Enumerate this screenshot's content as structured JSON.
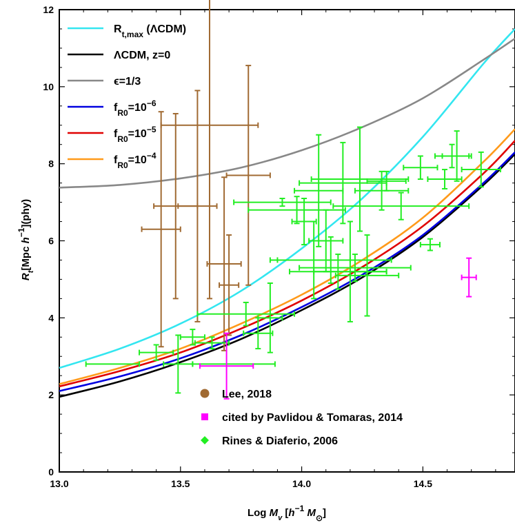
{
  "chart_data": {
    "type": "line",
    "xlabel_parts": [
      "Log ",
      "M",
      "v",
      " [",
      "h",
      "−1",
      " ",
      "M",
      "⊙",
      "]"
    ],
    "ylabel_parts": [
      "R",
      "t",
      "[Mpc ",
      "h",
      "−1",
      "](phy)"
    ],
    "xlim": [
      13.0,
      14.88
    ],
    "ylim": [
      0,
      12
    ],
    "x_ticks": [
      "13.0",
      "13.5",
      "14.0",
      "14.5"
    ],
    "y_ticks": [
      "0",
      "2",
      "4",
      "6",
      "8",
      "10",
      "12"
    ],
    "legend_lines": [
      {
        "parts": [
          "R",
          "t,max",
          " (ΛCDM)"
        ],
        "color": "#33e6f0"
      },
      {
        "parts": [
          "ΛCDM, z=0"
        ],
        "color": "#000000"
      },
      {
        "parts": [
          "ϵ=1/3"
        ],
        "color": "#888888"
      },
      {
        "parts": [
          "f",
          "R0",
          "=10",
          "−6"
        ],
        "color": "#0000e0"
      },
      {
        "parts": [
          "f",
          "R0",
          "=10",
          "−5"
        ],
        "color": "#e00000"
      },
      {
        "parts": [
          "f",
          "R0",
          "=10",
          "−4"
        ],
        "color": "#ff9a1a"
      }
    ],
    "legend_points": [
      {
        "label": "Lee, 2018",
        "marker": "circle",
        "color": "#a06a32"
      },
      {
        "label": "cited by Pavlidou & Tomaras, 2014",
        "marker": "square",
        "color": "#ff00ff"
      },
      {
        "label": "Rines & Diaferio, 2006",
        "marker": "diamond",
        "color": "#22ee22"
      }
    ],
    "curves": [
      {
        "name": "rtmax",
        "color": "#33e6f0",
        "x": [
          13.0,
          13.25,
          13.5,
          13.75,
          14.0,
          14.25,
          14.5,
          14.75,
          14.88
        ],
        "y": [
          2.7,
          3.2,
          3.85,
          4.7,
          5.8,
          7.1,
          8.7,
          10.6,
          11.5
        ]
      },
      {
        "name": "lcdm",
        "color": "#000000",
        "x": [
          13.0,
          13.25,
          13.5,
          13.75,
          14.0,
          14.25,
          14.5,
          14.75,
          14.88
        ],
        "y": [
          1.95,
          2.35,
          2.85,
          3.45,
          4.2,
          5.05,
          6.1,
          7.45,
          8.25
        ]
      },
      {
        "name": "eps",
        "color": "#888888",
        "x": [
          13.0,
          13.25,
          13.5,
          13.75,
          14.0,
          14.25,
          14.5,
          14.75,
          14.88
        ],
        "y": [
          7.38,
          7.45,
          7.62,
          7.9,
          8.35,
          8.95,
          9.7,
          10.7,
          11.25
        ]
      },
      {
        "name": "fr6",
        "color": "#0000e0",
        "x": [
          13.0,
          13.25,
          13.5,
          13.75,
          14.0,
          14.25,
          14.5,
          14.75,
          14.88
        ],
        "y": [
          2.1,
          2.48,
          2.95,
          3.55,
          4.28,
          5.12,
          6.15,
          7.5,
          8.3
        ]
      },
      {
        "name": "fr5",
        "color": "#e00000",
        "x": [
          13.0,
          13.25,
          13.5,
          13.75,
          14.0,
          14.25,
          14.5,
          14.75,
          14.88
        ],
        "y": [
          2.22,
          2.62,
          3.1,
          3.72,
          4.45,
          5.32,
          6.38,
          7.75,
          8.6
        ]
      },
      {
        "name": "fr4",
        "color": "#ff9a1a",
        "x": [
          13.0,
          13.25,
          13.5,
          13.75,
          14.0,
          14.25,
          14.5,
          14.75,
          14.88
        ],
        "y": [
          2.28,
          2.7,
          3.2,
          3.85,
          4.6,
          5.5,
          6.6,
          8.05,
          8.9
        ]
      }
    ],
    "points": {
      "lee": {
        "color": "#a06a32",
        "data": [
          {
            "x": 13.42,
            "y": 6.3,
            "xerr": 0.08,
            "yerr": 3.05
          },
          {
            "x": 13.48,
            "y": 6.9,
            "xerr": 0.09,
            "yerr": 2.4
          },
          {
            "x": 13.57,
            "y": 6.9,
            "xerr": 0.08,
            "yerr": 3.0
          },
          {
            "x": 13.62,
            "y": 9.0,
            "xerr": 0.2,
            "yerr": 4.5
          },
          {
            "x": 13.68,
            "y": 5.4,
            "xerr": 0.07,
            "yerr": 2.25
          },
          {
            "x": 13.7,
            "y": 4.85,
            "xerr": 0.04,
            "yerr": 1.3
          },
          {
            "x": 13.78,
            "y": 7.7,
            "xerr": 0.09,
            "yerr": 2.85
          }
        ]
      },
      "pavlidou": {
        "color": "#ff00ff",
        "data": [
          {
            "x": 13.69,
            "y": 2.75,
            "xerr": 0.11,
            "yerr": 0.85
          },
          {
            "x": 14.69,
            "y": 5.05,
            "xerr": 0.03,
            "yerr": 0.5
          }
        ]
      },
      "rines": {
        "color": "#22ee22",
        "data": [
          {
            "x": 13.22,
            "y": 2.8,
            "xerr": 0.11,
            "yerr": 0.0
          },
          {
            "x": 13.4,
            "y": 3.1,
            "xerr": 0.07,
            "yerr": 0.2
          },
          {
            "x": 13.49,
            "y": 2.8,
            "xerr": 0.06,
            "yerr": 0.75
          },
          {
            "x": 13.55,
            "y": 3.5,
            "xerr": 0.05,
            "yerr": 0.2
          },
          {
            "x": 13.63,
            "y": 3.35,
            "xerr": 0.07,
            "yerr": 0.15
          },
          {
            "x": 13.72,
            "y": 2.8,
            "xerr": 0.17,
            "yerr": 0.0
          },
          {
            "x": 13.77,
            "y": 4.1,
            "xerr": 0.2,
            "yerr": 0.3
          },
          {
            "x": 13.82,
            "y": 3.6,
            "xerr": 0.06,
            "yerr": 0.4
          },
          {
            "x": 13.87,
            "y": 4.0,
            "xerr": 0.05,
            "yerr": 0.9
          },
          {
            "x": 13.92,
            "y": 7.0,
            "xerr": 0.2,
            "yerr": 0.1
          },
          {
            "x": 13.98,
            "y": 6.8,
            "xerr": 0.2,
            "yerr": 0.35
          },
          {
            "x": 14.01,
            "y": 6.5,
            "xerr": 0.05,
            "yerr": 0.6
          },
          {
            "x": 14.05,
            "y": 5.5,
            "xerr": 0.15,
            "yerr": 1.0
          },
          {
            "x": 14.07,
            "y": 7.3,
            "xerr": 0.1,
            "yerr": 1.45
          },
          {
            "x": 14.1,
            "y": 6.0,
            "xerr": 0.07,
            "yerr": 0.8
          },
          {
            "x": 14.12,
            "y": 5.5,
            "xerr": 0.25,
            "yerr": 0.6
          },
          {
            "x": 14.15,
            "y": 5.2,
            "xerr": 0.2,
            "yerr": 0.45
          },
          {
            "x": 14.17,
            "y": 7.5,
            "xerr": 0.18,
            "yerr": 1.05
          },
          {
            "x": 14.2,
            "y": 5.2,
            "xerr": 0.15,
            "yerr": 1.3
          },
          {
            "x": 14.22,
            "y": 5.3,
            "xerr": 0.23,
            "yerr": 0.35
          },
          {
            "x": 14.24,
            "y": 7.6,
            "xerr": 0.2,
            "yerr": 1.35
          },
          {
            "x": 14.27,
            "y": 5.1,
            "xerr": 0.13,
            "yerr": 1.05
          },
          {
            "x": 14.33,
            "y": 7.3,
            "xerr": 0.11,
            "yerr": 0.5
          },
          {
            "x": 14.35,
            "y": 7.55,
            "xerr": 0.08,
            "yerr": 0.25
          },
          {
            "x": 14.41,
            "y": 6.9,
            "xerr": 0.28,
            "yerr": 0.35
          },
          {
            "x": 14.49,
            "y": 7.9,
            "xerr": 0.07,
            "yerr": 0.3
          },
          {
            "x": 14.53,
            "y": 5.9,
            "xerr": 0.04,
            "yerr": 0.15
          },
          {
            "x": 14.59,
            "y": 7.6,
            "xerr": 0.07,
            "yerr": 0.25
          },
          {
            "x": 14.62,
            "y": 8.2,
            "xerr": 0.07,
            "yerr": 0.3
          },
          {
            "x": 14.64,
            "y": 8.2,
            "xerr": 0.06,
            "yerr": 0.65
          },
          {
            "x": 14.74,
            "y": 7.85,
            "xerr": 0.08,
            "yerr": 0.45
          }
        ]
      }
    }
  }
}
